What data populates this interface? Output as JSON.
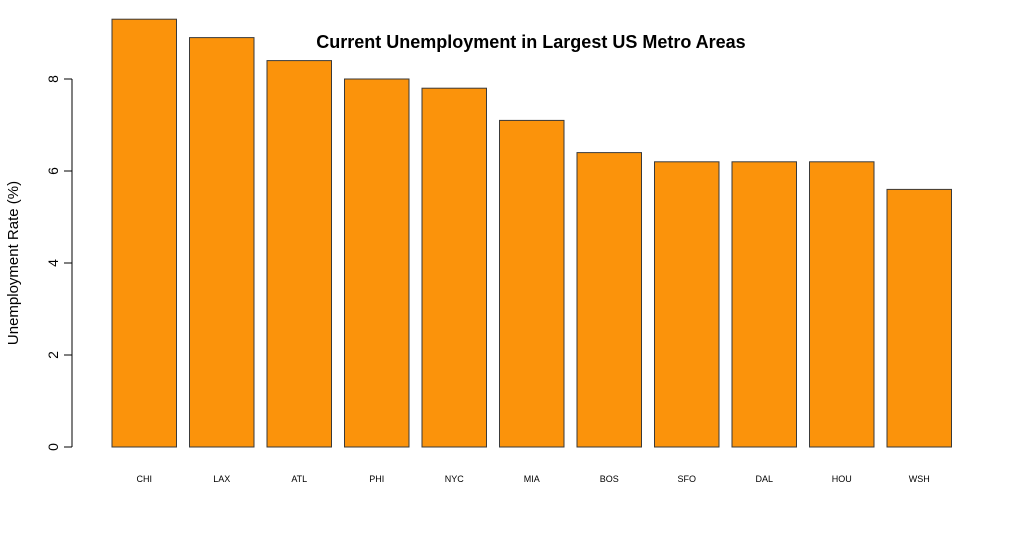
{
  "chart_data": {
    "type": "bar",
    "title": "Current Unemployment in Largest US Metro Areas",
    "xlabel": "",
    "ylabel": "Unemployment Rate (%)",
    "categories": [
      "CHI",
      "LAX",
      "ATL",
      "PHI",
      "NYC",
      "MIA",
      "BOS",
      "SFO",
      "DAL",
      "HOU",
      "WSH"
    ],
    "values": [
      9.3,
      8.9,
      8.4,
      8.0,
      7.8,
      7.1,
      6.4,
      6.2,
      6.2,
      6.2,
      5.6
    ],
    "yticks": [
      "0",
      "2",
      "4",
      "6",
      "8"
    ],
    "ylim": [
      0,
      9.3
    ],
    "grid": false,
    "legend": "none",
    "colors": {
      "bar_fill": "#FB930B",
      "bar_stroke": "#3a3a3a",
      "axis": "#000000"
    }
  }
}
